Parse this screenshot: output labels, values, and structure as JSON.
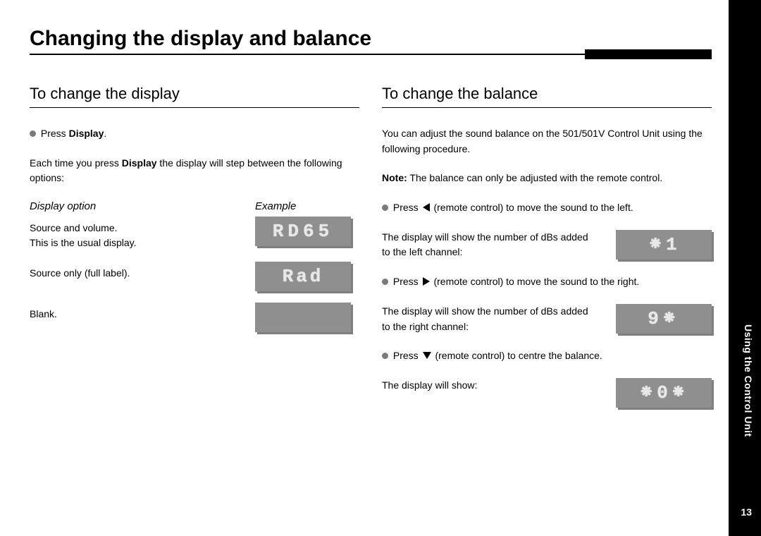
{
  "title": "Changing the display and balance",
  "left": {
    "heading": "To change the display",
    "bullet1_pre": "Press ",
    "bullet1_bold": "Display",
    "bullet1_post": ".",
    "para1_pre": "Each time you press ",
    "para1_bold": "Display",
    "para1_post": " the display will step between the following options:",
    "th_option": "Display option",
    "th_example": "Example",
    "rows": [
      {
        "label_line1": "Source and volume.",
        "label_line2": "This is the usual display.",
        "lcd": "RD65"
      },
      {
        "label_line1": "Source only (full label).",
        "label_line2": "",
        "lcd": "Rad"
      },
      {
        "label_line1": "Blank.",
        "label_line2": "",
        "lcd": ""
      }
    ]
  },
  "right": {
    "heading": "To change the balance",
    "intro": "You can adjust the sound balance on the 501/501V Control Unit using the following procedure.",
    "note_label": "Note:",
    "note_text": " The balance can only be adjusted with the remote control.",
    "b1_pre": "Press ",
    "b1_post": " (remote control) to move the sound to the left.",
    "b1_res": "The display will show the number of dBs added to the left channel:",
    "lcd1": "⁕1",
    "b2_pre": "Press ",
    "b2_post": " (remote control) to move the sound to the right.",
    "b2_res": "The display will show the number of dBs added to the right channel:",
    "lcd2": "9⁕",
    "b3_pre": "Press ",
    "b3_post": " (remote control) to centre the balance.",
    "b3_res": "The display will show:",
    "lcd3": "⁕0⁕"
  },
  "side": {
    "label": "Using the Control Unit",
    "page": "13"
  }
}
